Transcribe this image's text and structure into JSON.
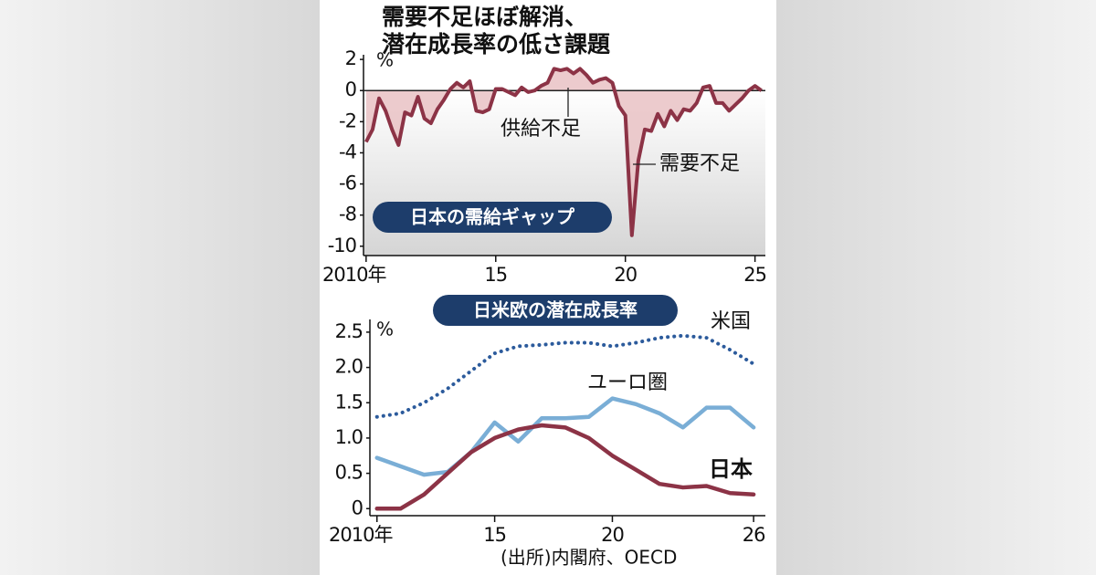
{
  "title_lines": [
    "需要不足ほぼ解消、",
    "潜在成長率の低さ課題"
  ],
  "source": "(出所)内閣府、OECD",
  "chart_data": [
    {
      "type": "area",
      "label": "日本の需給ギャップ",
      "y_unit": "%",
      "color": "#8c3346",
      "fill_color": "#e9c2c4",
      "annotations": [
        "供給不足",
        "需要不足"
      ],
      "x": [
        2010,
        2010.25,
        2010.5,
        2010.75,
        2011,
        2011.25,
        2011.5,
        2011.75,
        2012,
        2012.25,
        2012.5,
        2012.75,
        2013,
        2013.25,
        2013.5,
        2013.75,
        2014,
        2014.25,
        2014.5,
        2014.75,
        2015,
        2015.25,
        2015.5,
        2015.75,
        2016,
        2016.25,
        2016.5,
        2016.75,
        2017,
        2017.25,
        2017.5,
        2017.75,
        2018,
        2018.25,
        2018.5,
        2018.75,
        2019,
        2019.25,
        2019.5,
        2019.75,
        2020,
        2020.25,
        2020.5,
        2020.75,
        2021,
        2021.25,
        2021.5,
        2021.75,
        2022,
        2022.25,
        2022.5,
        2022.75,
        2023,
        2023.25,
        2023.5,
        2023.75,
        2024,
        2024.25,
        2024.5,
        2024.75,
        2025,
        2025.25
      ],
      "values": [
        -3.3,
        -2.5,
        -0.5,
        -1.3,
        -2.5,
        -3.5,
        -1.4,
        -1.6,
        -0.4,
        -1.8,
        -2.1,
        -1.2,
        -0.6,
        0.1,
        0.5,
        0.2,
        0.6,
        -1.3,
        -1.4,
        -1.2,
        0.1,
        0.1,
        -0.1,
        -0.3,
        0.2,
        -0.1,
        0.0,
        0.3,
        0.5,
        1.4,
        1.3,
        1.4,
        1.1,
        1.4,
        1.0,
        0.5,
        0.7,
        0.8,
        0.5,
        -1.0,
        -1.6,
        -9.3,
        -4.5,
        -2.5,
        -2.6,
        -1.5,
        -2.3,
        -1.3,
        -1.9,
        -1.2,
        -1.3,
        -0.8,
        0.2,
        0.3,
        -0.8,
        -0.8,
        -1.3,
        -0.9,
        -0.5,
        0.0,
        0.3,
        0.0
      ],
      "xlim": [
        2009.9,
        2025.4
      ],
      "ylim": [
        -10.6,
        2.3
      ],
      "yticks": [
        2,
        0,
        -2,
        -4,
        -6,
        -8,
        -10
      ],
      "xticks": [
        {
          "value": 2010,
          "label": "2010年"
        },
        {
          "value": 2015,
          "label": "15"
        },
        {
          "value": 2020,
          "label": "20"
        },
        {
          "value": 2025,
          "label": "25"
        }
      ]
    },
    {
      "type": "line",
      "label": "日米欧の潜在成長率",
      "y_unit": "%",
      "x": [
        2010,
        2011,
        2012,
        2013,
        2014,
        2015,
        2016,
        2017,
        2018,
        2019,
        2020,
        2021,
        2022,
        2023,
        2024,
        2025,
        2026
      ],
      "series": [
        {
          "name": "米国",
          "color": "#2c5b9c",
          "style": "dotted",
          "values": [
            1.3,
            1.35,
            1.5,
            1.7,
            1.95,
            2.2,
            2.3,
            2.32,
            2.35,
            2.35,
            2.3,
            2.35,
            2.42,
            2.45,
            2.42,
            2.25,
            2.05
          ]
        },
        {
          "name": "ユーロ圏",
          "color": "#7aaed6",
          "style": "solid",
          "values": [
            0.72,
            0.6,
            0.48,
            0.52,
            0.8,
            1.22,
            0.95,
            1.28,
            1.28,
            1.3,
            1.56,
            1.48,
            1.35,
            1.15,
            1.43,
            1.43,
            1.15
          ]
        },
        {
          "name": "日本",
          "color": "#8c3346",
          "style": "solid",
          "emphasis": true,
          "values": [
            0,
            0,
            0.2,
            0.5,
            0.8,
            1.0,
            1.12,
            1.18,
            1.15,
            1.0,
            0.75,
            0.55,
            0.35,
            0.3,
            0.32,
            0.22,
            0.2
          ]
        }
      ],
      "xlim": [
        2009.7,
        2026.5
      ],
      "ylim": [
        -0.1,
        2.68
      ],
      "yticks": [
        0,
        0.5,
        {
          "value": 1,
          "label": "1.0"
        },
        1.5,
        {
          "value": 2,
          "label": "2.0"
        },
        2.5
      ],
      "xticks": [
        {
          "value": 2010,
          "label": "2010年"
        },
        {
          "value": 2015,
          "label": "15"
        },
        {
          "value": 2020,
          "label": "20"
        },
        {
          "value": 2026,
          "label": "26"
        }
      ]
    }
  ]
}
